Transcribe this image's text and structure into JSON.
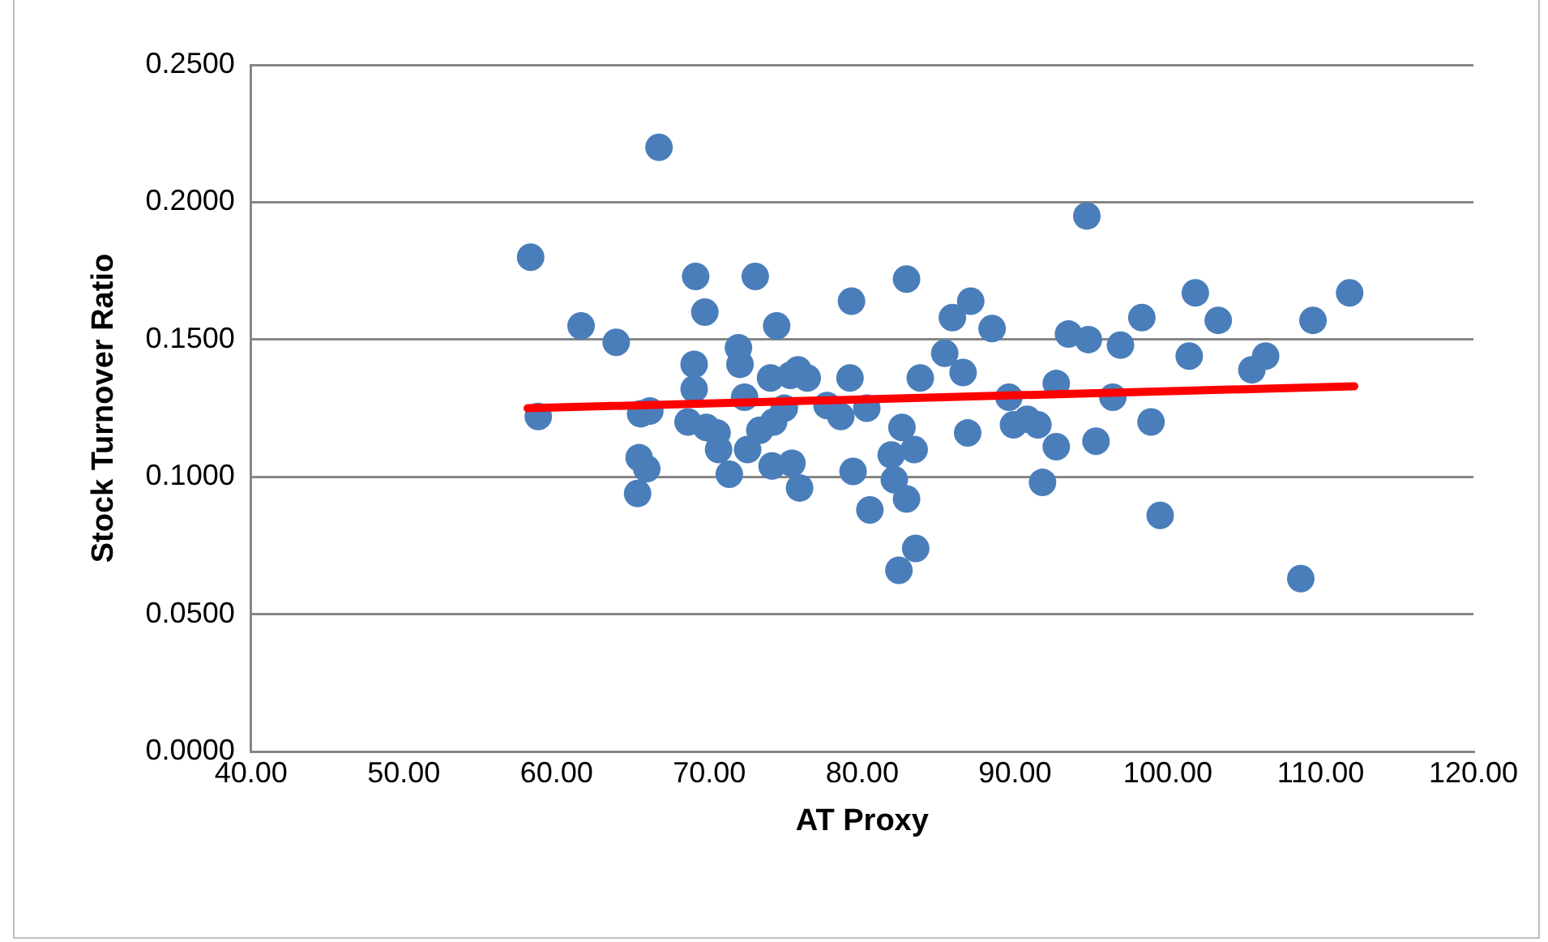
{
  "chart_data": {
    "type": "scatter",
    "xlabel": "AT Proxy",
    "ylabel": "Stock Turnover Ratio",
    "xlim": [
      40,
      120
    ],
    "ylim": [
      0,
      0.25
    ],
    "xticks": [
      {
        "value": 40,
        "label": "40.00"
      },
      {
        "value": 50,
        "label": "50.00"
      },
      {
        "value": 60,
        "label": "60.00"
      },
      {
        "value": 70,
        "label": "70.00"
      },
      {
        "value": 80,
        "label": "80.00"
      },
      {
        "value": 90,
        "label": "90.00"
      },
      {
        "value": 100,
        "label": "100.00"
      },
      {
        "value": 110,
        "label": "110.00"
      },
      {
        "value": 120,
        "label": "120.00"
      }
    ],
    "yticks": [
      {
        "value": 0,
        "label": "0.0000"
      },
      {
        "value": 0.05,
        "label": "0.0500"
      },
      {
        "value": 0.1,
        "label": "0.1000"
      },
      {
        "value": 0.15,
        "label": "0.1500"
      },
      {
        "value": 0.2,
        "label": "0.2000"
      },
      {
        "value": 0.25,
        "label": "0.2500"
      }
    ],
    "grid": "y",
    "legend": false,
    "series": [
      {
        "color": "#4a7ebb",
        "marker": "circle",
        "x": [
          66.7,
          58.3,
          61.6,
          63.9,
          69.1,
          73.0,
          69.7,
          74.4,
          79.3,
          58.8,
          71.9,
          72.0,
          69.0,
          69.0,
          66.1,
          65.5,
          68.6,
          69.8,
          70.5,
          72.3,
          74.0,
          74.2,
          73.3,
          70.6,
          72.5,
          71.3,
          65.4,
          65.9,
          65.3,
          74.1,
          75.4,
          75.9,
          75.8,
          75.3,
          76.4,
          74.9,
          77.7,
          79.2,
          78.6,
          80.3,
          79.4,
          80.5,
          94.7,
          82.9,
          85.9,
          87.1,
          88.5,
          85.4,
          86.6,
          83.8,
          93.5,
          94.8,
          96.9,
          98.3,
          101.8,
          101.4,
          89.6,
          92.7,
          96.4,
          89.9,
          90.8,
          91.5,
          92.7,
          95.3,
          98.9,
          91.8,
          99.5,
          86.9,
          82.6,
          83.4,
          81.9,
          82.1,
          82.9,
          83.5,
          82.4,
          103.3,
          111.9,
          109.5,
          106.4,
          105.5,
          108.7
        ],
        "values": [
          0.22,
          0.18,
          0.155,
          0.149,
          0.173,
          0.173,
          0.16,
          0.155,
          0.164,
          0.122,
          0.147,
          0.141,
          0.141,
          0.132,
          0.124,
          0.123,
          0.12,
          0.118,
          0.116,
          0.129,
          0.136,
          0.12,
          0.117,
          0.11,
          0.11,
          0.101,
          0.107,
          0.103,
          0.094,
          0.104,
          0.105,
          0.096,
          0.139,
          0.137,
          0.136,
          0.125,
          0.126,
          0.136,
          0.122,
          0.125,
          0.102,
          0.088,
          0.195,
          0.172,
          0.158,
          0.164,
          0.154,
          0.145,
          0.138,
          0.136,
          0.152,
          0.15,
          0.148,
          0.158,
          0.167,
          0.144,
          0.129,
          0.134,
          0.129,
          0.119,
          0.121,
          0.119,
          0.111,
          0.113,
          0.12,
          0.098,
          0.086,
          0.116,
          0.118,
          0.11,
          0.108,
          0.099,
          0.092,
          0.074,
          0.066,
          0.157,
          0.167,
          0.157,
          0.144,
          0.139,
          0.063
        ]
      },
      {
        "type": "line",
        "color": "#ff0000",
        "marker": "none",
        "line_style": "solid",
        "x": [
          58.1,
          112.2
        ],
        "values": [
          0.125,
          0.133
        ]
      }
    ]
  }
}
